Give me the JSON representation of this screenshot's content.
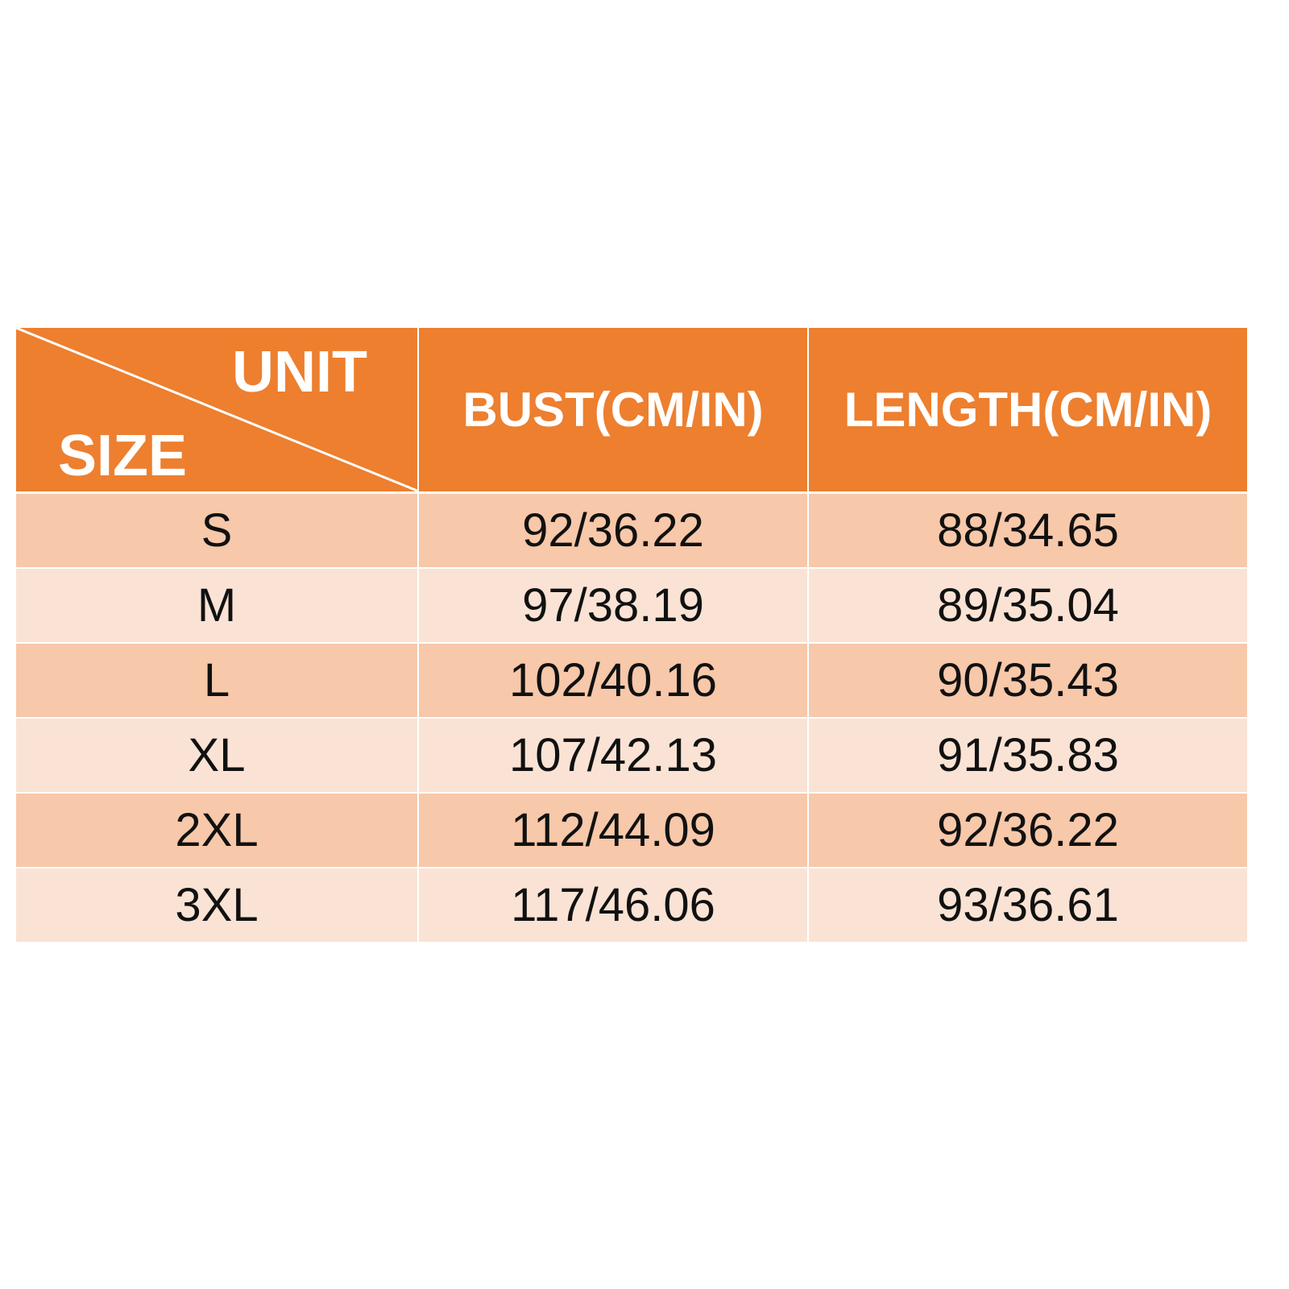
{
  "header": {
    "unit_label": "UNIT",
    "size_label": "SIZE",
    "columns": [
      "BUST(CM/IN)",
      "LENGTH(CM/IN)"
    ]
  },
  "colors": {
    "header": "#ED7F2F",
    "row_odd": "#F7C8A9",
    "row_even": "#FAE3D4"
  },
  "rows": [
    {
      "size": "S",
      "bust": "92/36.22",
      "length": "88/34.65"
    },
    {
      "size": "M",
      "bust": "97/38.19",
      "length": "89/35.04"
    },
    {
      "size": "L",
      "bust": "102/40.16",
      "length": "90/35.43"
    },
    {
      "size": "XL",
      "bust": "107/42.13",
      "length": "91/35.83"
    },
    {
      "size": "2XL",
      "bust": "112/44.09",
      "length": "92/36.22"
    },
    {
      "size": "3XL",
      "bust": "117/46.06",
      "length": "93/36.61"
    }
  ]
}
